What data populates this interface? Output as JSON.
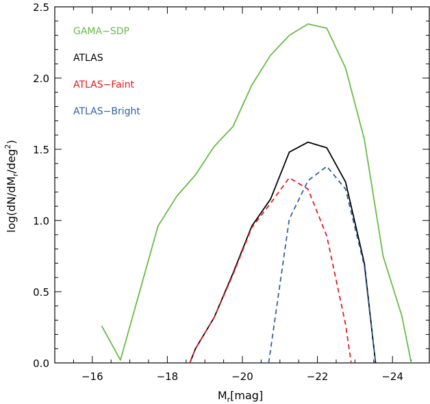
{
  "chart_data": {
    "type": "line",
    "xlabel": {
      "main": "M",
      "sub": "r",
      "tail": "[mag]"
    },
    "ylabel": {
      "pre": "log(dN/dM",
      "sub": "r",
      "mid": "/deg",
      "sup": "2",
      "post": ")"
    },
    "xlim": [
      -15.0,
      -25.0
    ],
    "ylim": [
      0.0,
      2.5
    ],
    "x_ticks": [
      -16,
      -18,
      -20,
      -22,
      -24
    ],
    "x_tick_labels": [
      "−16",
      "−18",
      "−20",
      "−22",
      "−24"
    ],
    "y_ticks": [
      0.0,
      0.5,
      1.0,
      1.5,
      2.0,
      2.5
    ],
    "y_tick_labels": [
      "0.0",
      "0.5",
      "1.0",
      "1.5",
      "2.0",
      "2.5"
    ],
    "legend_placement": "top-left",
    "grid": false,
    "series": [
      {
        "name": "GAMA−SDP",
        "color": "#66bb44",
        "dash": "solid",
        "x": [
          -16.25,
          -16.75,
          -17.25,
          -17.75,
          -18.25,
          -18.75,
          -19.25,
          -19.75,
          -20.25,
          -20.75,
          -21.25,
          -21.75,
          -22.25,
          -22.75,
          -23.25,
          -23.75,
          -24.25,
          -24.5
        ],
        "y": [
          0.26,
          0.02,
          0.49,
          0.96,
          1.17,
          1.32,
          1.52,
          1.66,
          1.95,
          2.16,
          2.3,
          2.38,
          2.35,
          2.07,
          1.57,
          0.75,
          0.33,
          0.0
        ]
      },
      {
        "name": "ATLAS",
        "color": "#000000",
        "dash": "solid",
        "x": [
          -18.6,
          -18.75,
          -19.25,
          -19.75,
          -20.25,
          -20.75,
          -21.25,
          -21.75,
          -22.25,
          -22.75,
          -23.25,
          -23.55
        ],
        "y": [
          0.0,
          0.1,
          0.32,
          0.63,
          0.96,
          1.15,
          1.48,
          1.55,
          1.51,
          1.27,
          0.7,
          0.0
        ]
      },
      {
        "name": "ATLAS−Faint",
        "color": "#e8161b",
        "dash": "dashed",
        "x": [
          -18.6,
          -18.75,
          -19.25,
          -19.75,
          -20.25,
          -20.75,
          -21.25,
          -21.75,
          -22.25,
          -22.75,
          -22.9
        ],
        "y": [
          0.0,
          0.1,
          0.32,
          0.62,
          0.95,
          1.12,
          1.3,
          1.22,
          0.89,
          0.27,
          0.0
        ]
      },
      {
        "name": "ATLAS−Bright",
        "color": "#2f5ea8",
        "dash": "dashed",
        "x": [
          -20.7,
          -21.25,
          -21.75,
          -22.25,
          -22.75,
          -23.25,
          -23.55
        ],
        "y": [
          0.0,
          1.01,
          1.28,
          1.38,
          1.22,
          0.68,
          0.0
        ]
      }
    ]
  }
}
